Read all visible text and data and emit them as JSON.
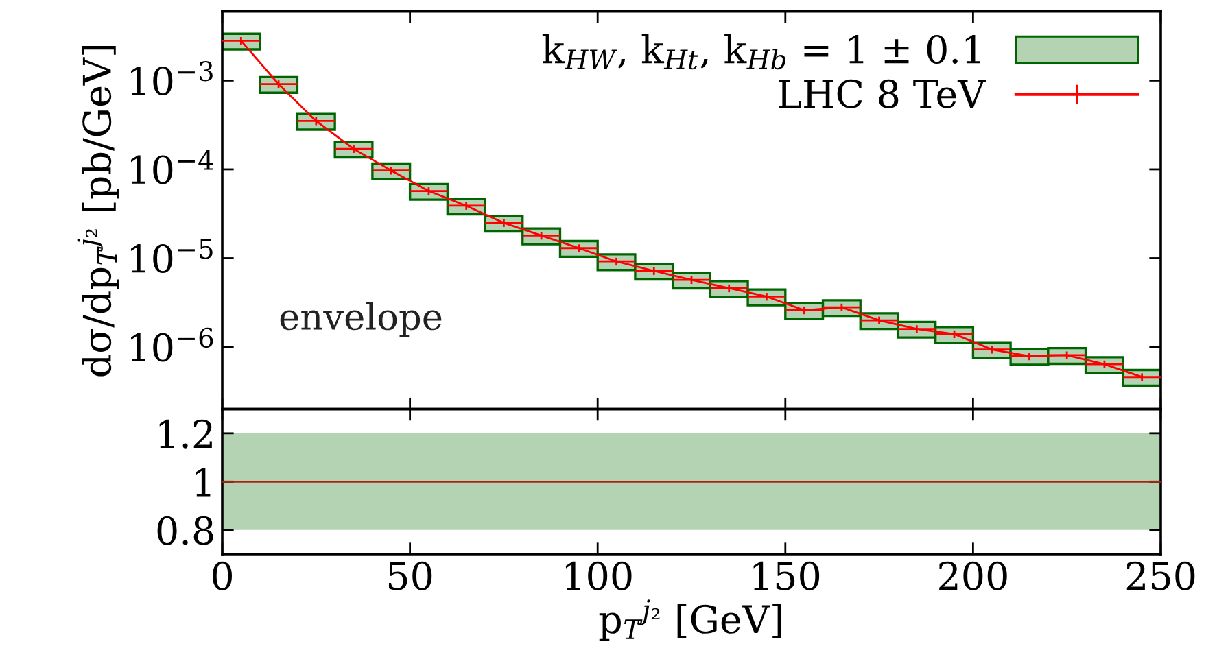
{
  "chart_data": [
    {
      "type": "bar",
      "ylabel": "dσ/dp$_{T}$$^{j₂}$ [pb/GeV]",
      "log": "y",
      "legend": "top right",
      "grid": false,
      "tick_labels": "y",
      "xlim": [
        0,
        250
      ],
      "xticks": [
        0,
        50,
        100,
        150,
        200,
        250
      ],
      "ylim": [
        2e-07,
        0.006
      ],
      "yticks": [
        {
          "value": 1e-06,
          "label": "10$^{−6}$"
        },
        {
          "value": 1e-05,
          "label": "10$^{−5}$"
        },
        {
          "value": 0.0001,
          "label": "10$^{−4}$"
        },
        {
          "value": 0.001,
          "label": "10$^{−3}$"
        }
      ],
      "annotations": [
        "envelope"
      ],
      "series": [
        {
          "name": "k$_{HW}$, k$_{Ht}$, k$_{Hb}$ = 1 ± 0.1",
          "color": "#b3d3b3",
          "x": [
            5,
            15,
            25,
            35,
            45,
            55,
            65,
            75,
            85,
            95,
            105,
            115,
            125,
            135,
            145,
            155,
            165,
            175,
            185,
            195,
            205,
            215,
            225,
            235,
            245
          ],
          "base": [
            0.00224,
            0.000728,
            0.00028,
            0.000136,
            7.76e-05,
            4.56e-05,
            3.12e-05,
            2e-05,
            1.44e-05,
            1.04e-05,
            7.36e-06,
            5.76e-06,
            4.56e-06,
            3.68e-06,
            2.96e-06,
            2.08e-06,
            2.24e-06,
            1.6e-06,
            1.28e-06,
            1.12e-06,
            7.52e-07,
            6.32e-07,
            6.48e-07,
            5.12e-07,
            3.68e-07
          ],
          "values": [
            0.00112,
            0.000364,
            0.00014,
            6.8e-05,
            3.88e-05,
            2.28e-05,
            1.56e-05,
            1e-05,
            7.2e-06,
            5.2e-06,
            3.68e-06,
            2.88e-06,
            2.28e-06,
            1.84e-06,
            1.48e-06,
            1.04e-06,
            1.12e-06,
            8e-07,
            6.4e-07,
            5.6e-07,
            3.76e-07,
            3.16e-07,
            3.24e-07,
            2.56e-07,
            1.84e-07
          ]
        },
        {
          "type": "line",
          "name": "LHC 8 TeV",
          "color": "#ff0000",
          "marker": "none",
          "line_style": "solid",
          "x": [
            5,
            15,
            25,
            35,
            45,
            55,
            65,
            75,
            85,
            95,
            105,
            115,
            125,
            135,
            145,
            155,
            165,
            175,
            185,
            195,
            205,
            215,
            225,
            235,
            245
          ],
          "values": [
            0.0028,
            0.00091,
            0.00035,
            0.00017,
            9.7e-05,
            5.7e-05,
            3.9e-05,
            2.5e-05,
            1.8e-05,
            1.3e-05,
            9.2e-06,
            7.2e-06,
            5.7e-06,
            4.6e-06,
            3.7e-06,
            2.6e-06,
            2.8e-06,
            2e-06,
            1.6e-06,
            1.4e-06,
            9.4e-07,
            7.9e-07,
            8.1e-07,
            6.4e-07,
            4.6e-07
          ],
          "errors": [
            0.00028,
            9.1e-05,
            3.5e-05,
            1.7e-05,
            9.7e-06,
            5.7e-06,
            3.9e-06,
            2.5e-06,
            1.8e-06,
            1.3e-06,
            9.2e-07,
            7.2e-07,
            5.7e-07,
            4.6e-07,
            3.7e-07,
            2.6e-07,
            2.8e-07,
            2e-07,
            1.6e-07,
            1.4e-07,
            9.4e-08,
            7.9e-08,
            8.1e-08,
            6.4e-08,
            4.6e-08
          ],
          "xerrors": [
            5,
            5,
            5,
            5,
            5,
            5,
            5,
            5,
            5,
            5,
            5,
            5,
            5,
            5,
            5,
            5,
            5,
            5,
            5,
            5,
            5,
            5,
            5,
            5,
            5
          ]
        }
      ]
    },
    {
      "type": "line",
      "xlabel": "p$_{T}$$^{j₂}$ [GeV]",
      "grid": false,
      "legend": false,
      "xlim": [
        0,
        250
      ],
      "xticks": [
        0,
        50,
        100,
        150,
        200,
        250
      ],
      "ylim": [
        0.7,
        1.3
      ],
      "yticks": [
        0.8,
        1,
        1.2
      ],
      "bands": [
        {
          "axis": "y",
          "from": 0.8,
          "to": 1.2,
          "color": "#b3d3b3"
        }
      ],
      "series": [
        {
          "color": "#b02010",
          "x": [
            0,
            250
          ],
          "values": [
            1,
            1
          ]
        }
      ]
    }
  ]
}
